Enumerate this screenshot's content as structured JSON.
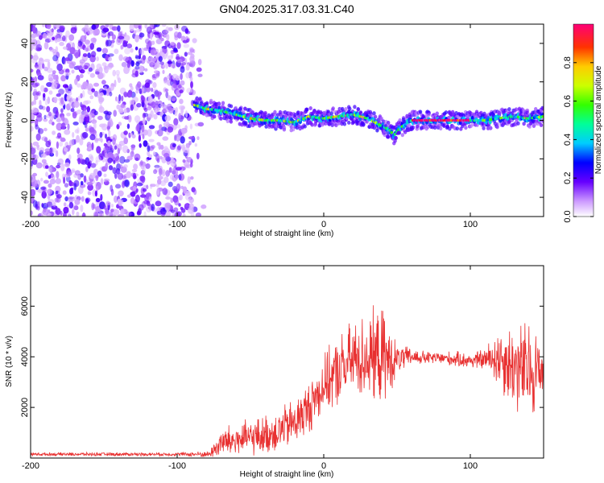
{
  "chart_data": [
    {
      "type": "heatmap",
      "title": "GN04.2025.317.03.31.C40",
      "xlabel": "Height of straight line (km)",
      "ylabel": "Frequency (Hz)",
      "xlim": [
        -200,
        150
      ],
      "ylim": [
        -50,
        50
      ],
      "x_ticks": [
        -200,
        -100,
        0,
        100
      ],
      "y_ticks": [
        -40,
        -20,
        0,
        20,
        40
      ],
      "colorbar": {
        "label": "Normalized spectral amplitude",
        "range": [
          0,
          1
        ],
        "ticks": [
          0,
          0.2,
          0.4,
          0.6,
          0.8
        ],
        "tick_labels": [
          "0.0",
          "0.2",
          "0.4",
          "0.6",
          "0.8"
        ]
      },
      "noise_region_x": [
        -200,
        -87
      ],
      "ridge": {
        "x": [
          -88,
          -80,
          -70,
          -60,
          -50,
          -40,
          -30,
          -20,
          -10,
          0,
          10,
          20,
          30,
          40,
          45,
          48,
          52,
          60,
          70,
          80,
          90,
          100,
          110,
          120,
          130,
          140,
          150
        ],
        "freq": [
          8,
          6,
          5,
          3,
          1,
          0,
          0,
          -1,
          2,
          1,
          2,
          3,
          1,
          -3,
          -5,
          -8,
          -4,
          0,
          0,
          0,
          0,
          0,
          0,
          1,
          2,
          1,
          2
        ],
        "peak_amplitude": 1.0
      }
    },
    {
      "type": "line",
      "xlabel": "Height of straight line (km)",
      "ylabel": "SNR (10 * v/v)",
      "xlim": [
        -200,
        150
      ],
      "ylim": [
        0,
        7600
      ],
      "x_ticks": [
        -200,
        -100,
        0,
        100
      ],
      "y_ticks": [
        2000,
        4000,
        6000
      ],
      "color": "#e83030",
      "envelope": {
        "x": [
          -200,
          -150,
          -100,
          -78,
          -70,
          -60,
          -50,
          -40,
          -30,
          -20,
          -10,
          0,
          10,
          20,
          30,
          40,
          45,
          50,
          60,
          70,
          80,
          90,
          100,
          110,
          120,
          130,
          140,
          150
        ],
        "mean": [
          150,
          150,
          150,
          150,
          600,
          700,
          800,
          900,
          1100,
          1400,
          2000,
          2900,
          3400,
          3900,
          4000,
          4000,
          3800,
          3900,
          4000,
          3950,
          3950,
          3900,
          3850,
          3900,
          4000,
          3600,
          3400,
          3500
        ],
        "spread": [
          80,
          80,
          80,
          150,
          700,
          800,
          800,
          900,
          1000,
          1100,
          1200,
          1300,
          1600,
          1800,
          2000,
          2200,
          1600,
          700,
          400,
          300,
          300,
          350,
          350,
          500,
          1500,
          2000,
          2400,
          1500
        ]
      }
    }
  ]
}
